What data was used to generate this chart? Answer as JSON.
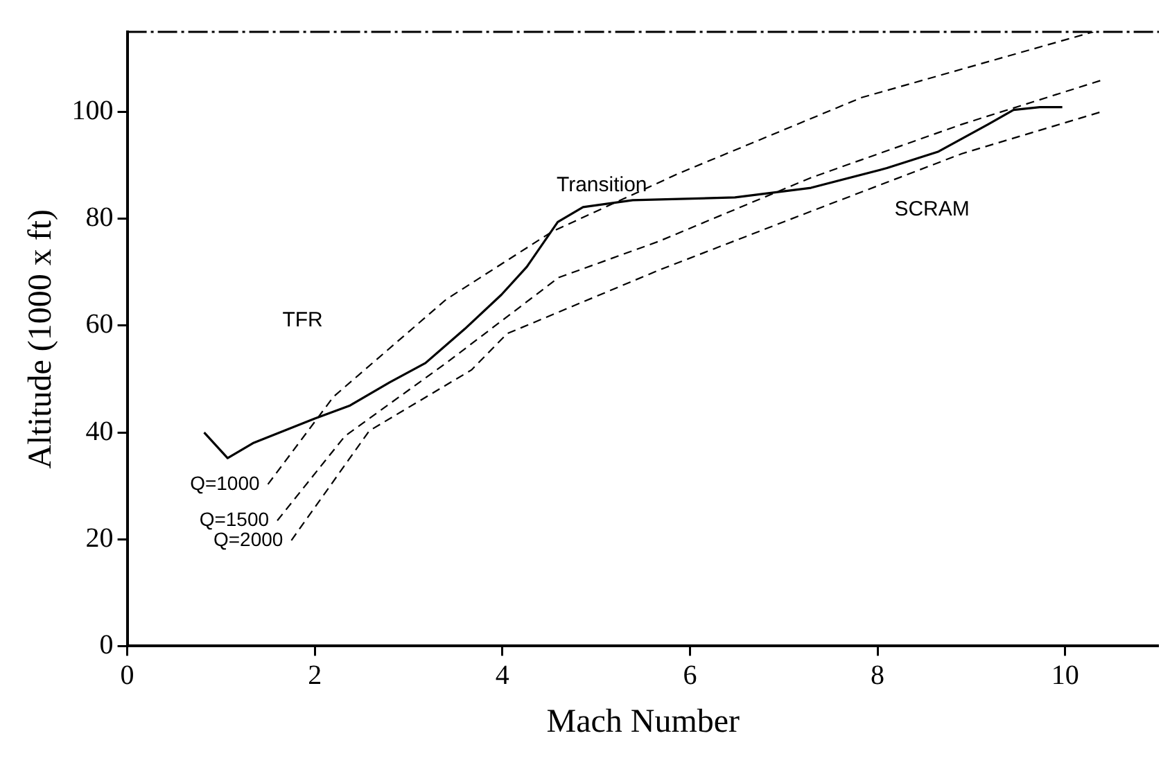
{
  "chart_data": {
    "type": "line",
    "xlabel": "Mach Number",
    "ylabel": "Altitude (1000 x ft)",
    "xlim": [
      0,
      11
    ],
    "ylim": [
      0,
      115
    ],
    "xticks": [
      0,
      2,
      4,
      6,
      8,
      10
    ],
    "yticks": [
      0,
      20,
      40,
      60,
      80,
      100
    ],
    "grid": false,
    "legend": false,
    "marker": "none",
    "series": [
      {
        "color": "#000000",
        "line_style": "solid",
        "x": [
          0.82,
          1.07,
          1.34,
          2.0,
          2.37,
          2.8,
          3.18,
          3.6,
          3.99,
          4.26,
          4.59,
          4.86,
          5.39,
          6.48,
          7.29,
          8.1,
          8.65,
          9.18,
          9.45,
          9.73,
          9.97
        ],
        "values": [
          40,
          35.2,
          38,
          42.6,
          45,
          49.4,
          53,
          59.4,
          65.8,
          71,
          79.4,
          82.2,
          83.5,
          84,
          85.8,
          89.5,
          92.6,
          97.7,
          100.4,
          100.9,
          100.9
        ]
      },
      {
        "name": "Q=1000",
        "color": "#000000",
        "line_style": "dashed",
        "x": [
          1.5,
          2.2,
          3.4,
          4.53,
          5.88,
          7.83,
          10.3
        ],
        "values": [
          30.3,
          46.7,
          64.9,
          77.6,
          88.5,
          102.7,
          115
        ]
      },
      {
        "name": "Q=1500",
        "color": "#000000",
        "line_style": "dashed",
        "x": [
          1.6,
          2.32,
          3.4,
          4.6,
          5.67,
          7.29,
          8.9,
          10.38
        ],
        "values": [
          23.5,
          39.3,
          53,
          69,
          75.8,
          87.7,
          97.7,
          105.9
        ]
      },
      {
        "name": "Q=2000",
        "color": "#000000",
        "line_style": "dashed",
        "x": [
          1.75,
          2.58,
          3.67,
          4.05,
          5.67,
          7.29,
          8.9,
          10.38
        ],
        "values": [
          19.8,
          40.3,
          51.7,
          58.5,
          70.4,
          81.4,
          92.2,
          100
        ]
      }
    ],
    "annotations": [
      "TFR",
      "Transition",
      "SCRAM"
    ]
  }
}
